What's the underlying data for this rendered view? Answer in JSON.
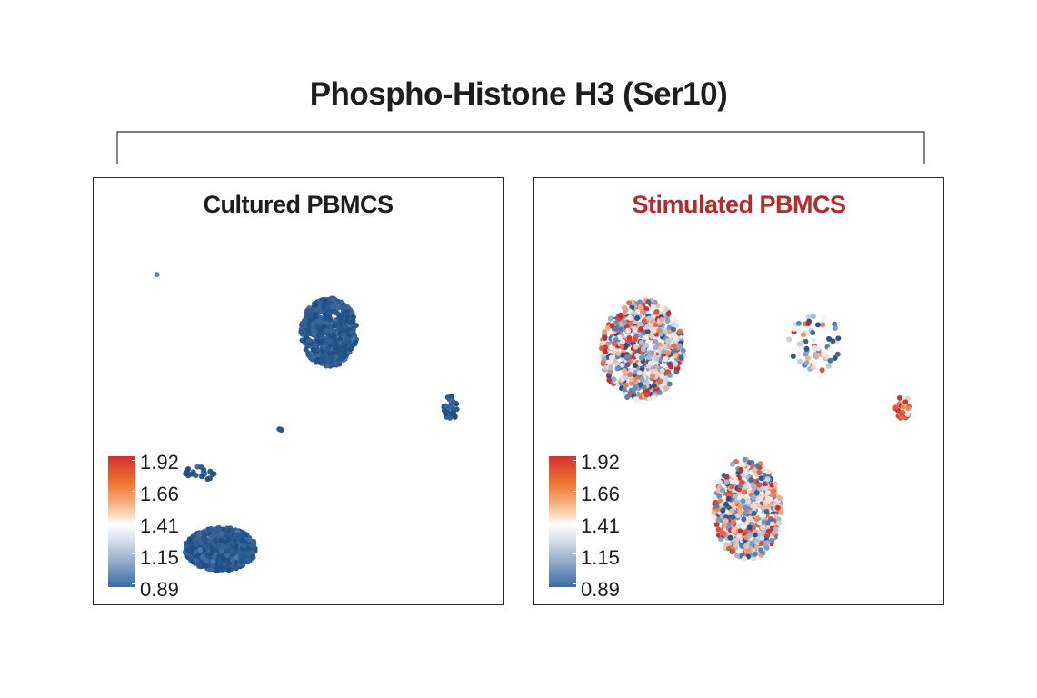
{
  "figure": {
    "title": "Phospho-Histone H3 (Ser10)"
  },
  "colors": {
    "low": "#1f4e85",
    "mid": "#f7f7f7",
    "high": "#c9292a",
    "stimulated_title": "#b32b2d",
    "cultured_title": "#1d1d1d"
  },
  "chart_data": [
    {
      "type": "scatter",
      "title": "Cultured PBMCS",
      "xlabel": "",
      "ylabel": "",
      "grid": false,
      "colorbar": {
        "placement": "bottom-left",
        "ticks": [
          "1.92",
          "1.66",
          "1.41",
          "1.15",
          "0.89"
        ],
        "range": [
          0.89,
          1.92
        ]
      },
      "clusters": [
        {
          "cx": 0.58,
          "cy": 0.73,
          "rx": 0.075,
          "ry": 0.095,
          "count": 650,
          "mean": 0.92,
          "spread": 0.05
        },
        {
          "cx": 0.29,
          "cy": 0.13,
          "rx": 0.095,
          "ry": 0.06,
          "count": 750,
          "mean": 0.92,
          "spread": 0.05
        },
        {
          "cx": 0.905,
          "cy": 0.52,
          "rx": 0.018,
          "ry": 0.035,
          "count": 35,
          "mean": 0.92,
          "spread": 0.05
        },
        {
          "cx": 0.235,
          "cy": 0.34,
          "rx": 0.04,
          "ry": 0.02,
          "count": 22,
          "mean": 0.92,
          "spread": 0.05
        },
        {
          "cx": 0.45,
          "cy": 0.46,
          "rx": 0.003,
          "ry": 0.01,
          "count": 3,
          "mean": 0.92,
          "spread": 0.05
        },
        {
          "cx": 0.12,
          "cy": 0.89,
          "rx": 0.001,
          "ry": 0.001,
          "count": 1,
          "mean": 1.1,
          "spread": 0.02
        }
      ]
    },
    {
      "type": "scatter",
      "title": "Stimulated PBMCS",
      "xlabel": "",
      "ylabel": "",
      "grid": false,
      "colorbar": {
        "placement": "bottom-left",
        "ticks": [
          "1.92",
          "1.66",
          "1.41",
          "1.15",
          "0.89"
        ],
        "range": [
          0.89,
          1.92
        ]
      },
      "clusters": [
        {
          "cx": 0.24,
          "cy": 0.68,
          "rx": 0.11,
          "ry": 0.14,
          "count": 700,
          "mean": 1.41,
          "spread": 0.32
        },
        {
          "cx": 0.52,
          "cy": 0.24,
          "rx": 0.09,
          "ry": 0.14,
          "count": 650,
          "mean": 1.41,
          "spread": 0.32
        },
        {
          "cx": 0.7,
          "cy": 0.7,
          "rx": 0.07,
          "ry": 0.08,
          "count": 60,
          "mean": 1.2,
          "spread": 0.3
        },
        {
          "cx": 0.935,
          "cy": 0.52,
          "rx": 0.02,
          "ry": 0.035,
          "count": 30,
          "mean": 1.75,
          "spread": 0.2
        }
      ]
    }
  ]
}
